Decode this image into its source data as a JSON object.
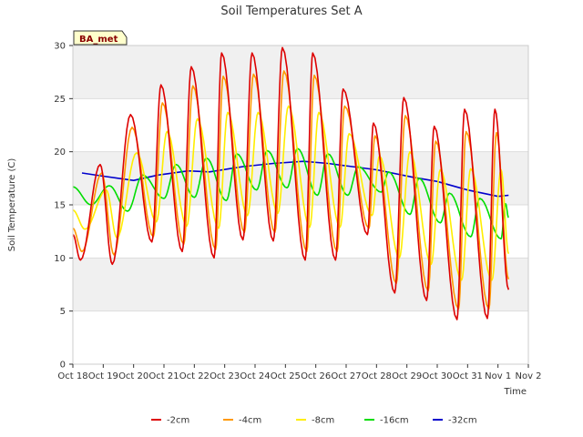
{
  "chart_data": {
    "type": "line",
    "title": "Soil Temperatures Set A",
    "xlabel": "Time",
    "ylabel": "Soil Temperature (C)",
    "site_label": "BA_met",
    "ylim": [
      0,
      30
    ],
    "yticks": [
      0,
      5,
      10,
      15,
      20,
      25,
      30
    ],
    "xlim": [
      0,
      15
    ],
    "xticks": [
      {
        "x": 0,
        "label": "Oct 18"
      },
      {
        "x": 1,
        "label": "Oct 19"
      },
      {
        "x": 2,
        "label": "Oct 20"
      },
      {
        "x": 3,
        "label": "Oct 21"
      },
      {
        "x": 4,
        "label": "Oct 22"
      },
      {
        "x": 5,
        "label": "Oct 23"
      },
      {
        "x": 6,
        "label": "Oct 24"
      },
      {
        "x": 7,
        "label": "Oct 25"
      },
      {
        "x": 8,
        "label": "Oct 26"
      },
      {
        "x": 9,
        "label": "Oct 27"
      },
      {
        "x": 10,
        "label": "Oct 28"
      },
      {
        "x": 11,
        "label": "Oct 29"
      },
      {
        "x": 12,
        "label": "Oct 30"
      },
      {
        "x": 13,
        "label": "Oct 31"
      },
      {
        "x": 14,
        "label": "Nov 1"
      },
      {
        "x": 15,
        "label": "Nov 2"
      }
    ],
    "x_unit": "days since Oct 18",
    "grid": "horizontal bands",
    "legend_position": "bottom",
    "series": [
      {
        "name": "-2cm",
        "color": "#dd0000",
        "daily_min": [
          {
            "x": 0.0,
            "y": 12.2
          },
          {
            "x": 0.25,
            "y": 9.8
          },
          {
            "x": 1.3,
            "y": 9.4
          },
          {
            "x": 2.6,
            "y": 11.5
          },
          {
            "x": 3.6,
            "y": 10.6
          },
          {
            "x": 4.65,
            "y": 10.0
          },
          {
            "x": 5.6,
            "y": 11.7
          },
          {
            "x": 6.6,
            "y": 11.6
          },
          {
            "x": 7.65,
            "y": 9.8
          },
          {
            "x": 8.65,
            "y": 9.8
          },
          {
            "x": 9.7,
            "y": 12.2
          },
          {
            "x": 10.6,
            "y": 6.7
          },
          {
            "x": 11.65,
            "y": 6.0
          },
          {
            "x": 12.65,
            "y": 4.2
          },
          {
            "x": 13.65,
            "y": 4.3
          },
          {
            "x": 14.35,
            "y": 7.0
          }
        ],
        "daily_max": [
          {
            "x": 0.9,
            "y": 18.8
          },
          {
            "x": 1.9,
            "y": 23.5
          },
          {
            "x": 2.9,
            "y": 26.3
          },
          {
            "x": 3.9,
            "y": 28.0
          },
          {
            "x": 4.9,
            "y": 29.3
          },
          {
            "x": 5.9,
            "y": 29.3
          },
          {
            "x": 6.9,
            "y": 29.8
          },
          {
            "x": 7.9,
            "y": 29.3
          },
          {
            "x": 8.9,
            "y": 25.9
          },
          {
            "x": 9.9,
            "y": 22.7
          },
          {
            "x": 10.9,
            "y": 25.1
          },
          {
            "x": 11.9,
            "y": 22.4
          },
          {
            "x": 12.9,
            "y": 24.0
          },
          {
            "x": 13.9,
            "y": 24.0
          }
        ]
      },
      {
        "name": "-4cm",
        "color": "#ff9900",
        "daily_min": [
          {
            "x": 0.0,
            "y": 12.8
          },
          {
            "x": 0.3,
            "y": 10.6
          },
          {
            "x": 1.35,
            "y": 10.3
          },
          {
            "x": 2.65,
            "y": 12.0
          },
          {
            "x": 3.65,
            "y": 11.3
          },
          {
            "x": 4.7,
            "y": 10.8
          },
          {
            "x": 5.65,
            "y": 12.4
          },
          {
            "x": 6.65,
            "y": 12.4
          },
          {
            "x": 7.7,
            "y": 10.6
          },
          {
            "x": 8.7,
            "y": 10.6
          },
          {
            "x": 9.75,
            "y": 12.8
          },
          {
            "x": 10.65,
            "y": 7.6
          },
          {
            "x": 11.7,
            "y": 6.9
          },
          {
            "x": 12.7,
            "y": 5.2
          },
          {
            "x": 13.7,
            "y": 5.2
          },
          {
            "x": 14.35,
            "y": 8.0
          }
        ],
        "daily_max": [
          {
            "x": 0.95,
            "y": 18.0
          },
          {
            "x": 1.95,
            "y": 22.3
          },
          {
            "x": 2.95,
            "y": 24.6
          },
          {
            "x": 3.95,
            "y": 26.2
          },
          {
            "x": 4.95,
            "y": 27.1
          },
          {
            "x": 5.95,
            "y": 27.3
          },
          {
            "x": 6.95,
            "y": 27.6
          },
          {
            "x": 7.95,
            "y": 27.2
          },
          {
            "x": 8.95,
            "y": 24.3
          },
          {
            "x": 9.95,
            "y": 21.5
          },
          {
            "x": 10.95,
            "y": 23.4
          },
          {
            "x": 11.95,
            "y": 21.0
          },
          {
            "x": 12.95,
            "y": 21.9
          },
          {
            "x": 13.95,
            "y": 21.8
          }
        ]
      },
      {
        "name": "-8cm",
        "color": "#ffee00",
        "daily_min": [
          {
            "x": 0.0,
            "y": 14.5
          },
          {
            "x": 0.4,
            "y": 12.7
          },
          {
            "x": 1.45,
            "y": 11.9
          },
          {
            "x": 2.75,
            "y": 13.4
          },
          {
            "x": 3.75,
            "y": 13.0
          },
          {
            "x": 4.8,
            "y": 12.8
          },
          {
            "x": 5.75,
            "y": 14.0
          },
          {
            "x": 6.75,
            "y": 14.2
          },
          {
            "x": 7.8,
            "y": 12.9
          },
          {
            "x": 8.8,
            "y": 12.9
          },
          {
            "x": 9.85,
            "y": 14.0
          },
          {
            "x": 10.75,
            "y": 10.0
          },
          {
            "x": 11.8,
            "y": 9.4
          },
          {
            "x": 12.8,
            "y": 7.9
          },
          {
            "x": 13.8,
            "y": 7.9
          },
          {
            "x": 14.35,
            "y": 10.4
          }
        ],
        "daily_max": [
          {
            "x": 1.1,
            "y": 16.4
          },
          {
            "x": 2.1,
            "y": 19.9
          },
          {
            "x": 3.1,
            "y": 21.9
          },
          {
            "x": 4.1,
            "y": 23.1
          },
          {
            "x": 5.1,
            "y": 23.7
          },
          {
            "x": 6.1,
            "y": 23.7
          },
          {
            "x": 7.1,
            "y": 24.3
          },
          {
            "x": 8.1,
            "y": 23.7
          },
          {
            "x": 9.1,
            "y": 21.7
          },
          {
            "x": 10.1,
            "y": 19.6
          },
          {
            "x": 11.1,
            "y": 20.0
          },
          {
            "x": 12.1,
            "y": 18.3
          },
          {
            "x": 13.1,
            "y": 18.4
          },
          {
            "x": 14.1,
            "y": 18.3
          }
        ]
      },
      {
        "name": "-16cm",
        "color": "#00dd00",
        "daily_min": [
          {
            "x": 0.0,
            "y": 16.7
          },
          {
            "x": 0.6,
            "y": 15.0
          },
          {
            "x": 1.8,
            "y": 14.4
          },
          {
            "x": 3.0,
            "y": 15.6
          },
          {
            "x": 4.0,
            "y": 15.7
          },
          {
            "x": 5.05,
            "y": 15.4
          },
          {
            "x": 6.05,
            "y": 16.4
          },
          {
            "x": 7.05,
            "y": 16.6
          },
          {
            "x": 8.05,
            "y": 15.9
          },
          {
            "x": 9.05,
            "y": 15.9
          },
          {
            "x": 10.15,
            "y": 16.2
          },
          {
            "x": 11.1,
            "y": 14.1
          },
          {
            "x": 12.1,
            "y": 13.3
          },
          {
            "x": 13.1,
            "y": 12.0
          },
          {
            "x": 14.1,
            "y": 11.8
          },
          {
            "x": 14.35,
            "y": 13.8
          }
        ],
        "daily_max": [
          {
            "x": 1.2,
            "y": 16.8
          },
          {
            "x": 2.3,
            "y": 17.8
          },
          {
            "x": 3.4,
            "y": 18.8
          },
          {
            "x": 4.4,
            "y": 19.4
          },
          {
            "x": 5.4,
            "y": 19.8
          },
          {
            "x": 6.4,
            "y": 20.1
          },
          {
            "x": 7.4,
            "y": 20.3
          },
          {
            "x": 8.4,
            "y": 19.8
          },
          {
            "x": 9.4,
            "y": 18.6
          },
          {
            "x": 10.4,
            "y": 18.1
          },
          {
            "x": 11.4,
            "y": 17.5
          },
          {
            "x": 12.4,
            "y": 16.1
          },
          {
            "x": 13.4,
            "y": 15.6
          },
          {
            "x": 14.25,
            "y": 15.1
          }
        ]
      },
      {
        "name": "-32cm",
        "color": "#0000cc",
        "points": [
          {
            "x": 0.3,
            "y": 18.0
          },
          {
            "x": 1.0,
            "y": 17.7
          },
          {
            "x": 2.0,
            "y": 17.3
          },
          {
            "x": 2.8,
            "y": 17.8
          },
          {
            "x": 3.8,
            "y": 18.2
          },
          {
            "x": 4.5,
            "y": 18.1
          },
          {
            "x": 5.6,
            "y": 18.6
          },
          {
            "x": 6.6,
            "y": 18.9
          },
          {
            "x": 7.6,
            "y": 19.1
          },
          {
            "x": 8.4,
            "y": 18.9
          },
          {
            "x": 9.2,
            "y": 18.6
          },
          {
            "x": 10.0,
            "y": 18.3
          },
          {
            "x": 11.2,
            "y": 17.6
          },
          {
            "x": 12.0,
            "y": 17.2
          },
          {
            "x": 13.0,
            "y": 16.4
          },
          {
            "x": 14.0,
            "y": 15.8
          },
          {
            "x": 14.35,
            "y": 15.9
          }
        ]
      }
    ]
  }
}
